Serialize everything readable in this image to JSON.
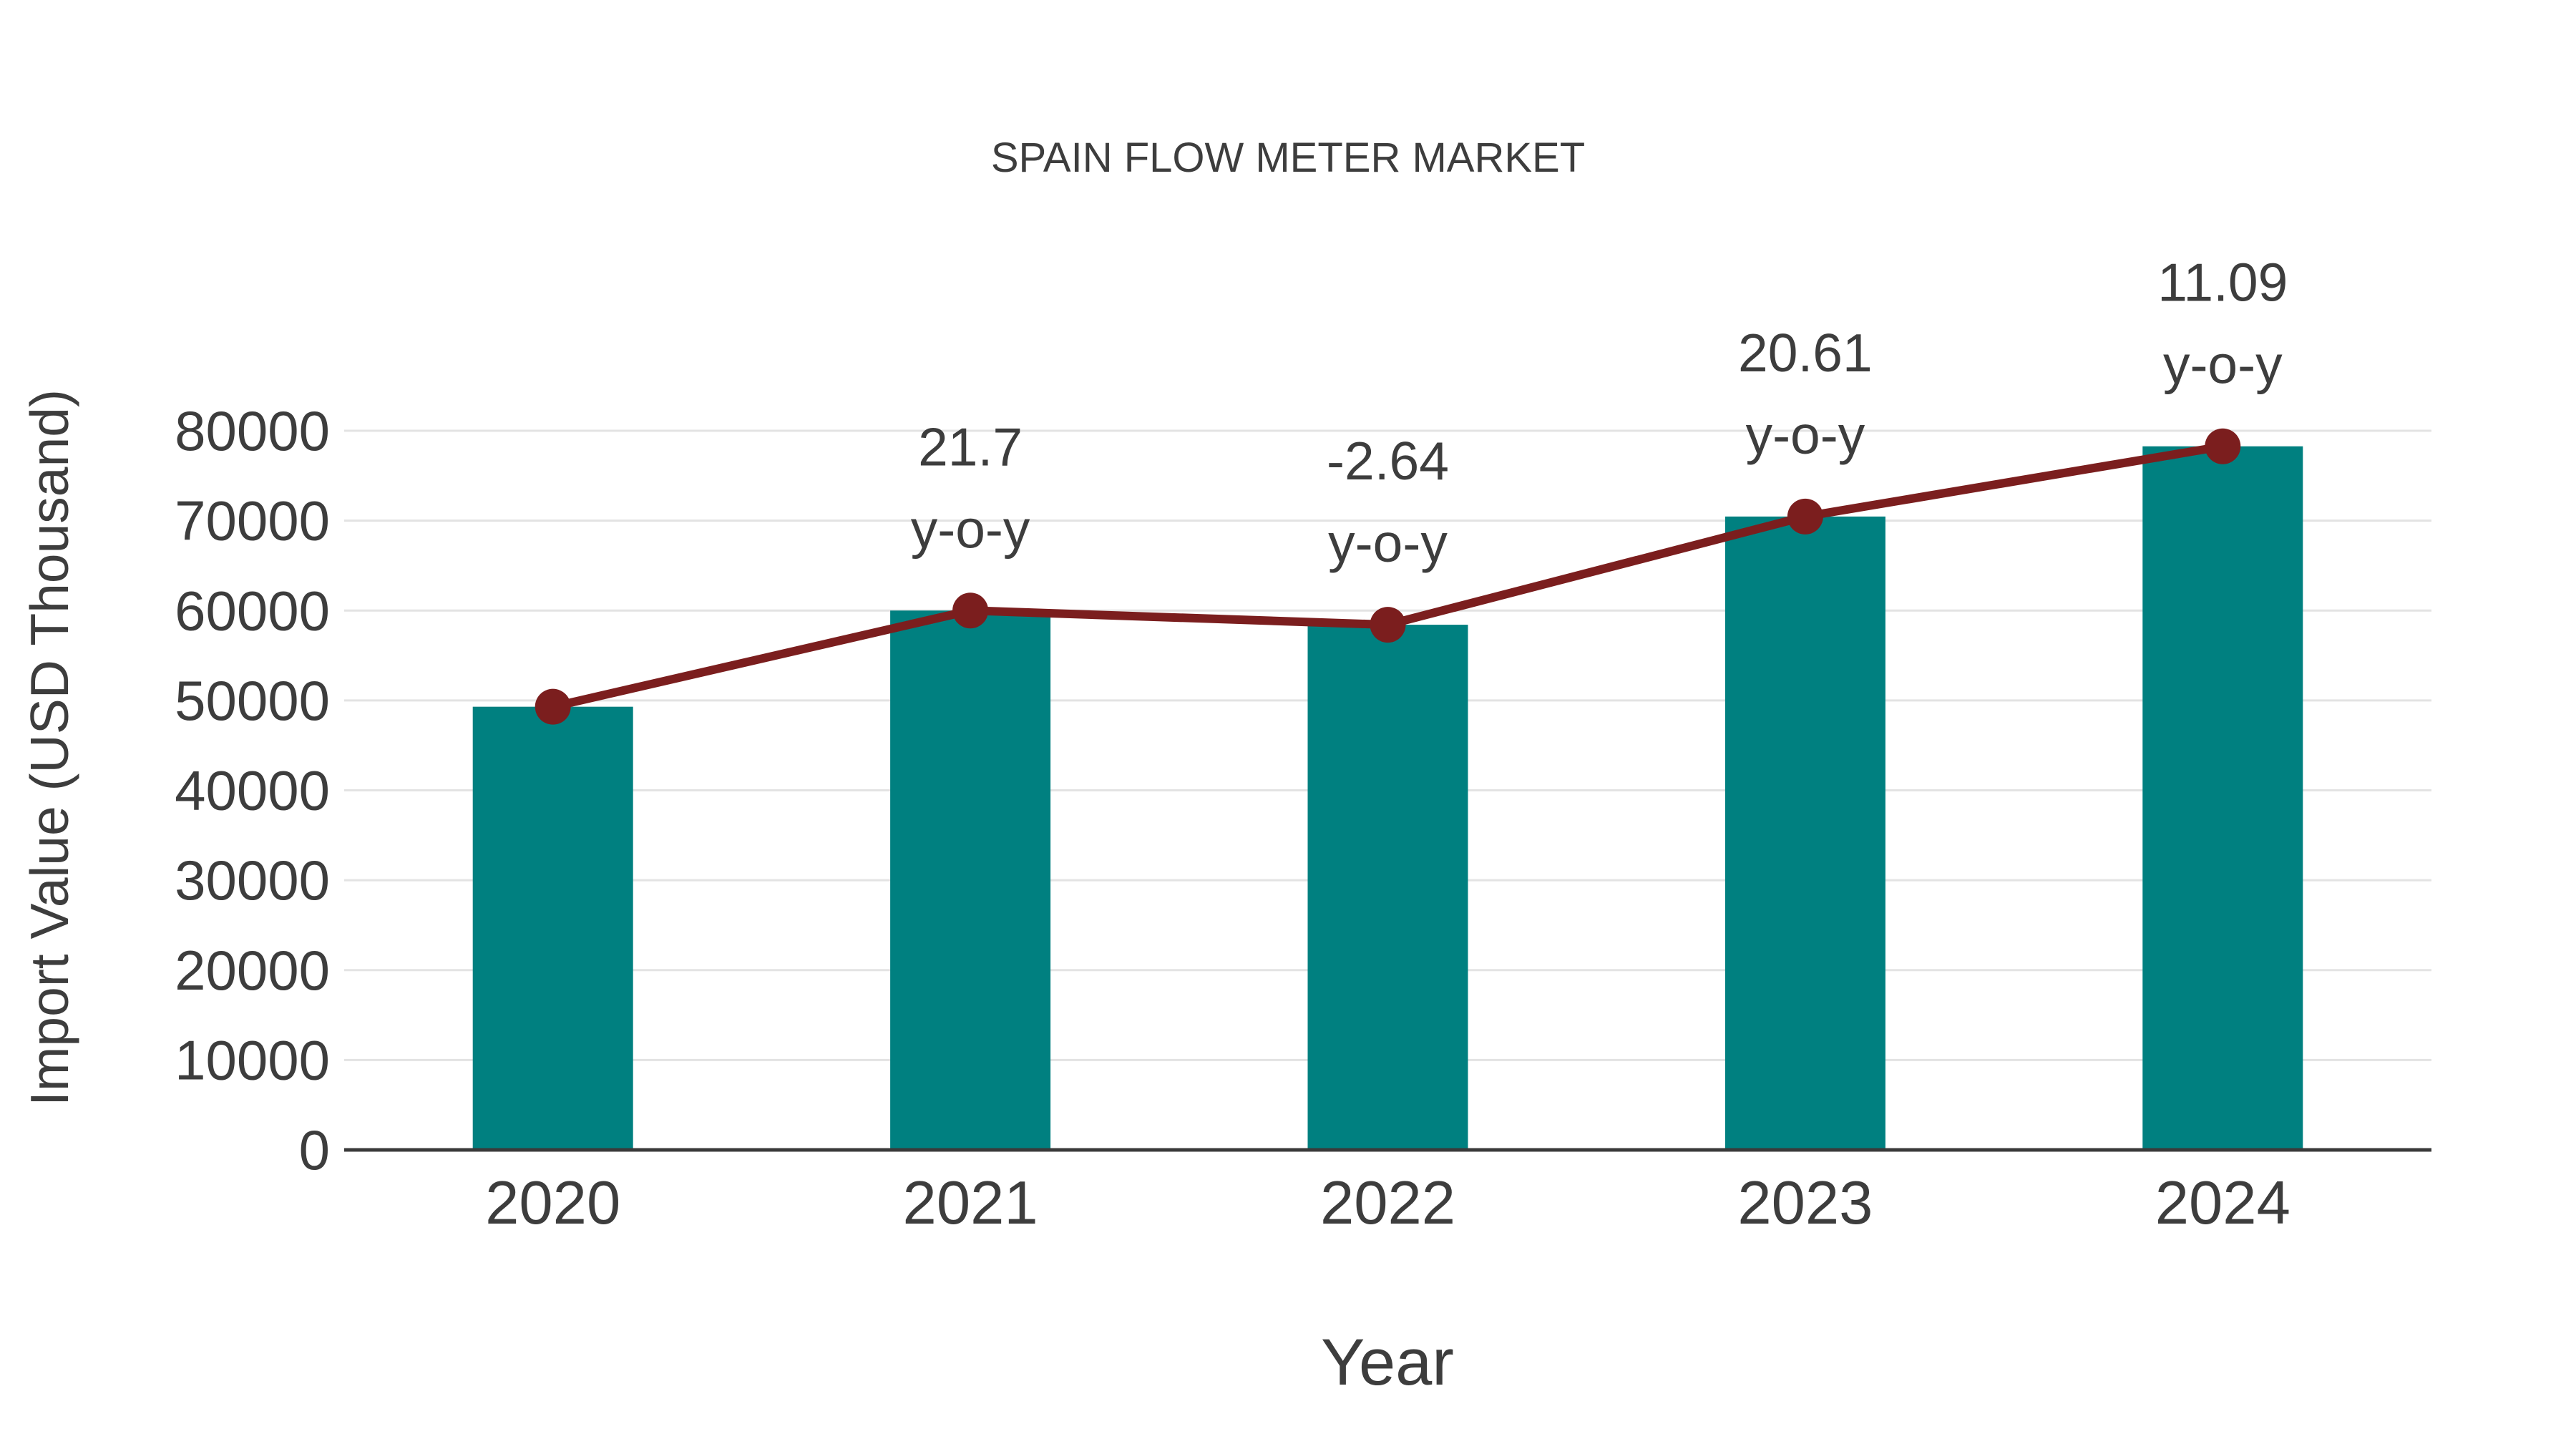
{
  "title": "SPAIN FLOW METER MARKET",
  "colors": {
    "bar": "#008080",
    "line": "#7b1e1e",
    "marker": "#7b1e1e",
    "grid": "#e3e3e3",
    "axis": "#3a3a3a",
    "text": "#3d3d3d",
    "background": "#ffffff"
  },
  "chart_data": {
    "type": "bar",
    "title": "SPAIN FLOW METER MARKET",
    "xlabel": "Year",
    "ylabel": "Import Value (USD Thousand)",
    "categories": [
      "2020",
      "2021",
      "2022",
      "2023",
      "2024"
    ],
    "series": [
      {
        "name": "Import Value (USD Thousand)",
        "type": "bar",
        "values": [
          49300,
          60000,
          58420,
          70460,
          78270
        ]
      },
      {
        "name": "y-o-y trend line",
        "type": "line",
        "values": [
          49300,
          60000,
          58420,
          70460,
          78270
        ],
        "yoy_labels": [
          "",
          "21.7",
          "-2.64",
          "20.61",
          "11.09"
        ],
        "label_suffix": "y-o-y"
      }
    ],
    "ylim": [
      0,
      80000
    ],
    "yticks": [
      0,
      10000,
      20000,
      30000,
      40000,
      50000,
      60000,
      70000,
      80000
    ],
    "grid": "horizontal",
    "legend": "none"
  }
}
